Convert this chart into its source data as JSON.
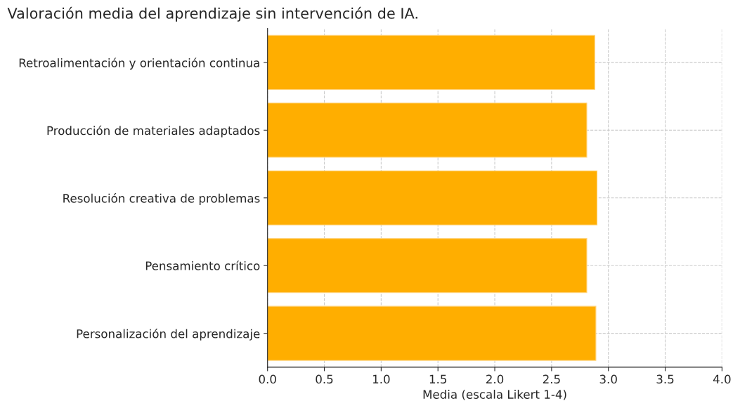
{
  "chart_data": {
    "type": "bar",
    "orientation": "horizontal",
    "title": "Valoración media del aprendizaje sin intervención de IA.",
    "xlabel": "Media (escala Likert 1-4)",
    "categories": [
      "Retroalimentación y orientación continua",
      "Producción de materiales adaptados",
      "Resolución creativa de problemas",
      "Pensamiento crítico",
      "Personalización del aprendizaje"
    ],
    "values": [
      2.88,
      2.81,
      2.9,
      2.81,
      2.89
    ],
    "color": "#ffae00",
    "xlim": [
      0,
      4.0
    ],
    "xticks": [
      {
        "value": 0,
        "label": "0.0"
      },
      0.5,
      {
        "value": 1,
        "label": "1.0"
      },
      1.5,
      {
        "value": 2,
        "label": "2.0"
      },
      2.5,
      {
        "value": 3,
        "label": "3.0"
      },
      3.5,
      {
        "value": 4,
        "label": "4.0"
      }
    ],
    "grid": true
  }
}
